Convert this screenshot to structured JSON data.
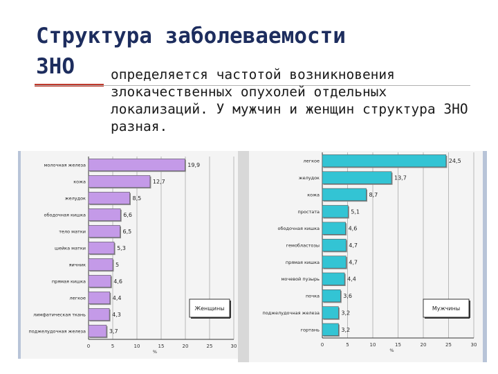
{
  "title": {
    "line1": "Структура заболеваемости",
    "line2": "ЗНО",
    "description": "определяется частотой возникновения злокачественных опухолей отдельных локализаций. У мужчин и женщин структура ЗНО разная."
  },
  "colors": {
    "women_bar": "#c49ae8",
    "men_bar": "#33c4d4",
    "title": "#1d2d5e",
    "accent": "#c0392b"
  },
  "chart_data": [
    {
      "type": "bar",
      "orientation": "horizontal",
      "legend": "Женщины",
      "legend_position": "bottom-right",
      "categories": [
        "молочная железа",
        "кожа",
        "желудок",
        "ободочная кишка",
        "тело матки",
        "шейка матки",
        "яичник",
        "прямая кишка",
        "легкое",
        "лимфатическая ткань",
        "поджелудочная железа"
      ],
      "values": [
        19.9,
        12.7,
        8.5,
        6.6,
        6.5,
        5.3,
        5,
        4.6,
        4.4,
        4.3,
        3.7
      ],
      "data_labels": [
        "19,9",
        "12,7",
        "8,5",
        "6,6",
        "6,5",
        "5,3",
        "5",
        "4,6",
        "4,4",
        "4,3",
        "3,7"
      ],
      "xlim": [
        0,
        30
      ],
      "xticks": [
        "0",
        "5",
        "10",
        "15",
        "20",
        "25",
        "30"
      ],
      "xlabel": "%",
      "grid": true
    },
    {
      "type": "bar",
      "orientation": "horizontal",
      "legend": "Мужчины",
      "legend_position": "bottom-right",
      "categories": [
        "легкое",
        "желудок",
        "кожа",
        "простата",
        "ободочная кишка",
        "гемобластозы",
        "прямая кишка",
        "мочевой пузырь",
        "почка",
        "поджелудочная железа",
        "гортань"
      ],
      "values": [
        24.5,
        13.7,
        8.7,
        5.1,
        4.6,
        4.7,
        4.7,
        4.4,
        3.6,
        3.2,
        3.2
      ],
      "data_labels": [
        "24,5",
        "13,7",
        "8,7",
        "5,1",
        "4,6",
        "4,7",
        "4,7",
        "4,4",
        "3,6",
        "3,2",
        "3,2"
      ],
      "xlim": [
        0,
        30
      ],
      "xticks": [
        "0",
        "5",
        "10",
        "15",
        "20",
        "25",
        "30"
      ],
      "xlabel": "%",
      "grid": true
    }
  ]
}
